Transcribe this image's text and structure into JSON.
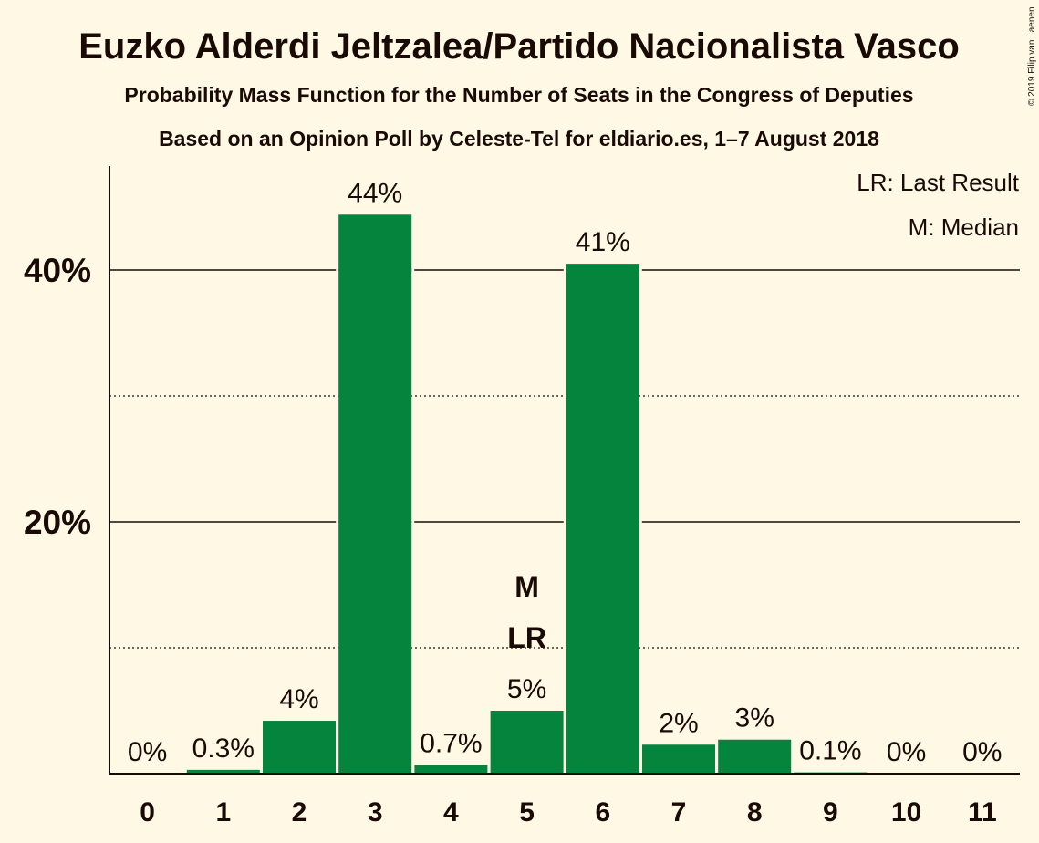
{
  "chart_data": {
    "type": "bar",
    "title": "Euzko Alderdi Jeltzalea/Partido Nacionalista Vasco",
    "subtitle": "Probability Mass Function for the Number of Seats in the Congress of Deputies",
    "subtitle2": "Based on an Opinion Poll by Celeste-Tel for eldiario.es, 1–7 August 2018",
    "copyright": "© 2019 Filip van Laenen",
    "xlabel": "",
    "ylabel": "",
    "categories": [
      "0",
      "1",
      "2",
      "3",
      "4",
      "5",
      "6",
      "7",
      "8",
      "9",
      "10",
      "11"
    ],
    "values": [
      0,
      0.3,
      4.2,
      44.4,
      0.7,
      5.0,
      40.5,
      2.3,
      2.7,
      0.1,
      0,
      0
    ],
    "data_labels": [
      "0%",
      "0.3%",
      "4%",
      "44%",
      "0.7%",
      "5%",
      "41%",
      "2%",
      "3%",
      "0.1%",
      "0%",
      "0%"
    ],
    "ylim": [
      0,
      48
    ],
    "yticks": [
      {
        "value": 20,
        "label": "20%"
      },
      {
        "value": 40,
        "label": "40%"
      }
    ],
    "minor_gridlines": [
      10,
      30
    ],
    "markers": [
      {
        "category": "5",
        "labels": [
          "M",
          "LR"
        ]
      }
    ],
    "legend": {
      "position": "top-right",
      "entries": [
        "LR: Last Result",
        "M: Median"
      ]
    },
    "bar_color": "#05843D",
    "background": "#FFF8E4",
    "text_color": "#1A0A05"
  }
}
